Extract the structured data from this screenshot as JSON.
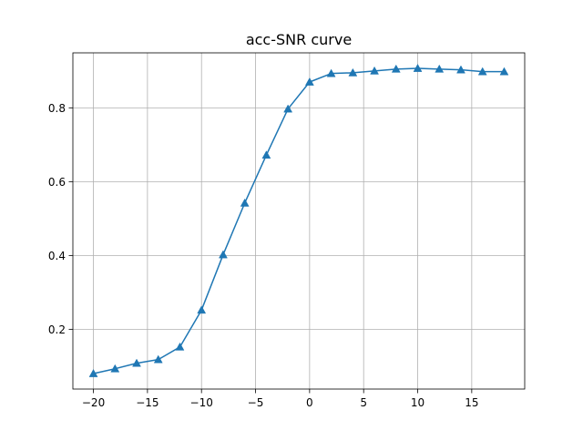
{
  "chart_data": {
    "type": "line",
    "title": "acc-SNR curve",
    "xlabel": "",
    "ylabel": "",
    "xlim": [
      -21.9,
      19.9
    ],
    "ylim": [
      0.038,
      0.949
    ],
    "xticks": [
      -20,
      -15,
      -10,
      -5,
      0,
      5,
      10,
      15
    ],
    "xtick_labels": [
      "−20",
      "−15",
      "−10",
      "−5",
      "0",
      "5",
      "10",
      "15"
    ],
    "yticks": [
      0.2,
      0.4,
      0.6,
      0.8
    ],
    "ytick_labels": [
      "0.2",
      "0.4",
      "0.6",
      "0.8"
    ],
    "grid": true,
    "legend": null,
    "series": [
      {
        "color": "#1f77b4",
        "marker": "triangle-up",
        "x": [
          -20,
          -18,
          -16,
          -14,
          -12,
          -10,
          -8,
          -6,
          -4,
          -2,
          0,
          2,
          4,
          6,
          8,
          10,
          12,
          14,
          16,
          18
        ],
        "y": [
          0.08,
          0.093,
          0.108,
          0.118,
          0.152,
          0.252,
          0.402,
          0.542,
          0.672,
          0.797,
          0.87,
          0.893,
          0.895,
          0.9,
          0.905,
          0.907,
          0.905,
          0.903,
          0.898,
          0.898
        ]
      }
    ]
  }
}
